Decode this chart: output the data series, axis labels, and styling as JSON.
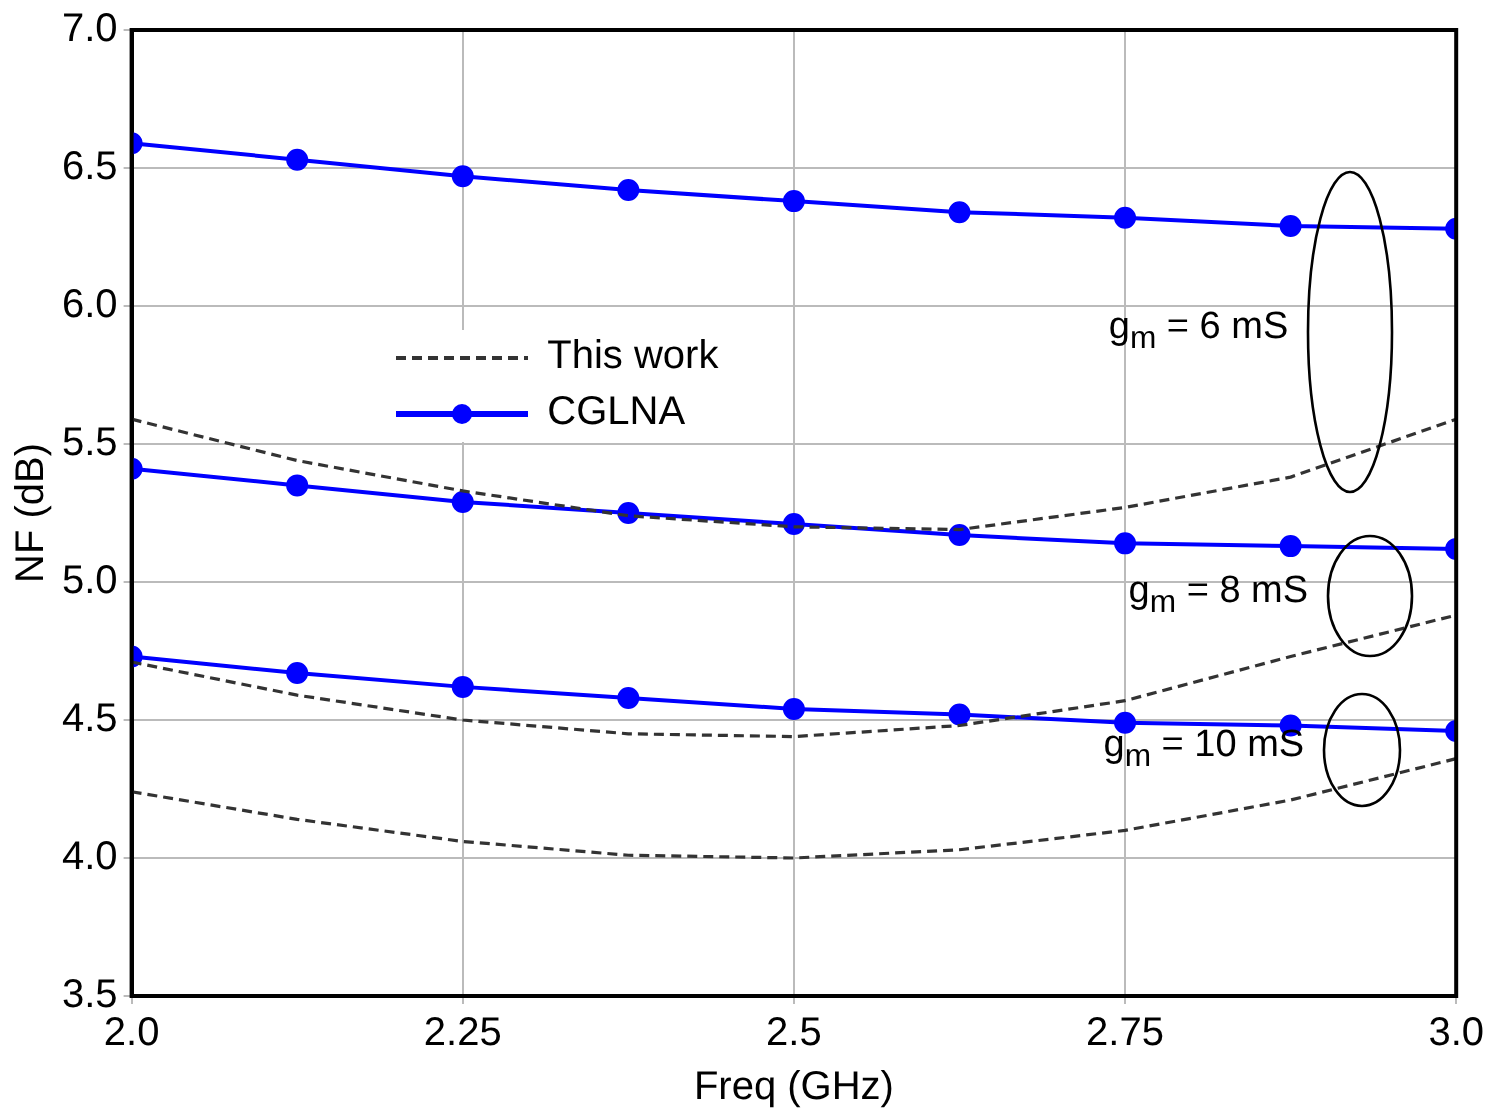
{
  "chart_data": {
    "type": "line",
    "xlabel": "Freq (GHz)",
    "ylabel": "NF (dB)",
    "x": [
      2.0,
      2.125,
      2.25,
      2.375,
      2.5,
      2.625,
      2.75,
      2.875,
      3.0
    ],
    "series": [
      {
        "name": "This work",
        "color": "#333333",
        "line_style": "dashed",
        "marker": "none",
        "values": [
          5.59,
          5.44,
          5.33,
          5.24,
          5.2,
          5.19,
          5.27,
          5.38,
          5.59
        ]
      },
      {
        "color": "#333333",
        "line_style": "dashed",
        "marker": "none",
        "values": [
          4.71,
          4.59,
          4.5,
          4.45,
          4.44,
          4.48,
          4.57,
          4.73,
          4.88
        ]
      },
      {
        "color": "#333333",
        "line_style": "dashed",
        "marker": "none",
        "values": [
          4.24,
          4.14,
          4.06,
          4.01,
          4.0,
          4.03,
          4.1,
          4.21,
          4.36
        ]
      },
      {
        "name": "CGLNA",
        "color": "#0000ff",
        "line_style": "solid",
        "marker": "circle",
        "values": [
          6.59,
          6.53,
          6.47,
          6.42,
          6.38,
          6.34,
          6.32,
          6.29,
          6.28
        ]
      },
      {
        "color": "#0000ff",
        "line_style": "solid",
        "marker": "circle",
        "values": [
          5.41,
          5.35,
          5.29,
          5.25,
          5.21,
          5.17,
          5.14,
          5.13,
          5.12
        ]
      },
      {
        "color": "#0000ff",
        "line_style": "solid",
        "marker": "circle",
        "values": [
          4.73,
          4.67,
          4.62,
          4.58,
          4.54,
          4.52,
          4.49,
          4.48,
          4.46
        ]
      }
    ],
    "xlim": [
      2.0,
      3.0
    ],
    "xticks": [
      {
        "value": 2,
        "label": "2.0"
      },
      2.25,
      2.5,
      2.75,
      {
        "value": 3,
        "label": "3.0"
      }
    ],
    "ylim": [
      3.5,
      7.0
    ],
    "yticks": [
      3.5,
      {
        "value": 4,
        "label": "4.0"
      },
      4.5,
      {
        "value": 5,
        "label": "5.0"
      },
      5.5,
      {
        "value": 6,
        "label": "6.0"
      },
      6.5,
      {
        "value": 7,
        "label": "7.0"
      }
    ],
    "grid": true,
    "legend": "center",
    "annotations": [
      "g$_{m}$ = 6 mS",
      "g$_{m}$ = 8 mS",
      "g$_{m}$ = 10 mS"
    ]
  }
}
